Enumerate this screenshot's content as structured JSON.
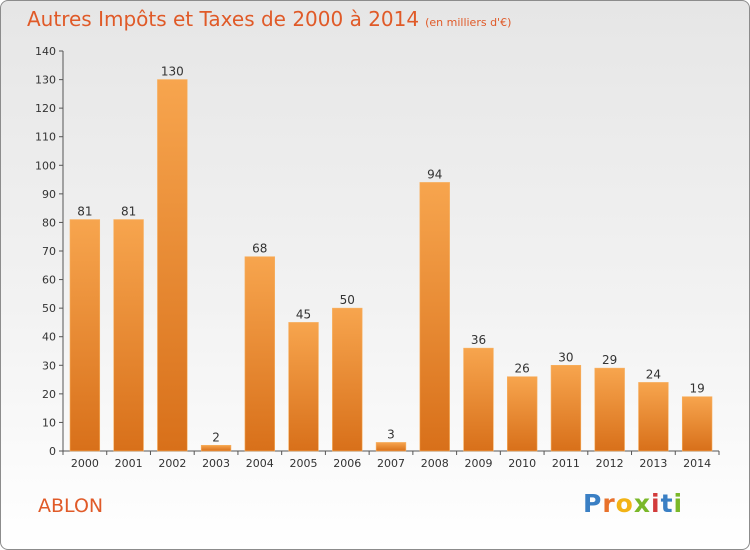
{
  "header": {
    "title": "Autres Impôts et Taxes de 2000 à 2014",
    "subtitle": "(en milliers d'€)"
  },
  "commune": "ABLON",
  "logo": {
    "letters": [
      "P",
      "r",
      "o",
      "x",
      "i",
      "t",
      "i"
    ],
    "colors": [
      "#3a7fc4",
      "#e8712b",
      "#f2b315",
      "#7ab829",
      "#d23b3b",
      "#3a7fc4",
      "#7ab829"
    ]
  },
  "chart_data": {
    "type": "bar",
    "title": "Autres Impôts et Taxes de 2000 à 2014",
    "subtitle": "(en milliers d'€)",
    "xlabel": "",
    "ylabel": "",
    "categories": [
      "2000",
      "2001",
      "2002",
      "2003",
      "2004",
      "2005",
      "2006",
      "2007",
      "2008",
      "2009",
      "2010",
      "2011",
      "2012",
      "2013",
      "2014"
    ],
    "values": [
      81,
      81,
      130,
      2,
      68,
      45,
      50,
      3,
      94,
      36,
      26,
      30,
      29,
      24,
      19
    ],
    "ylim": [
      0,
      140
    ],
    "yticks": [
      0,
      10,
      20,
      30,
      40,
      50,
      60,
      70,
      80,
      90,
      100,
      110,
      120,
      130,
      140
    ],
    "grid": false,
    "legend": "none",
    "bar_color": "#f08a2e"
  }
}
